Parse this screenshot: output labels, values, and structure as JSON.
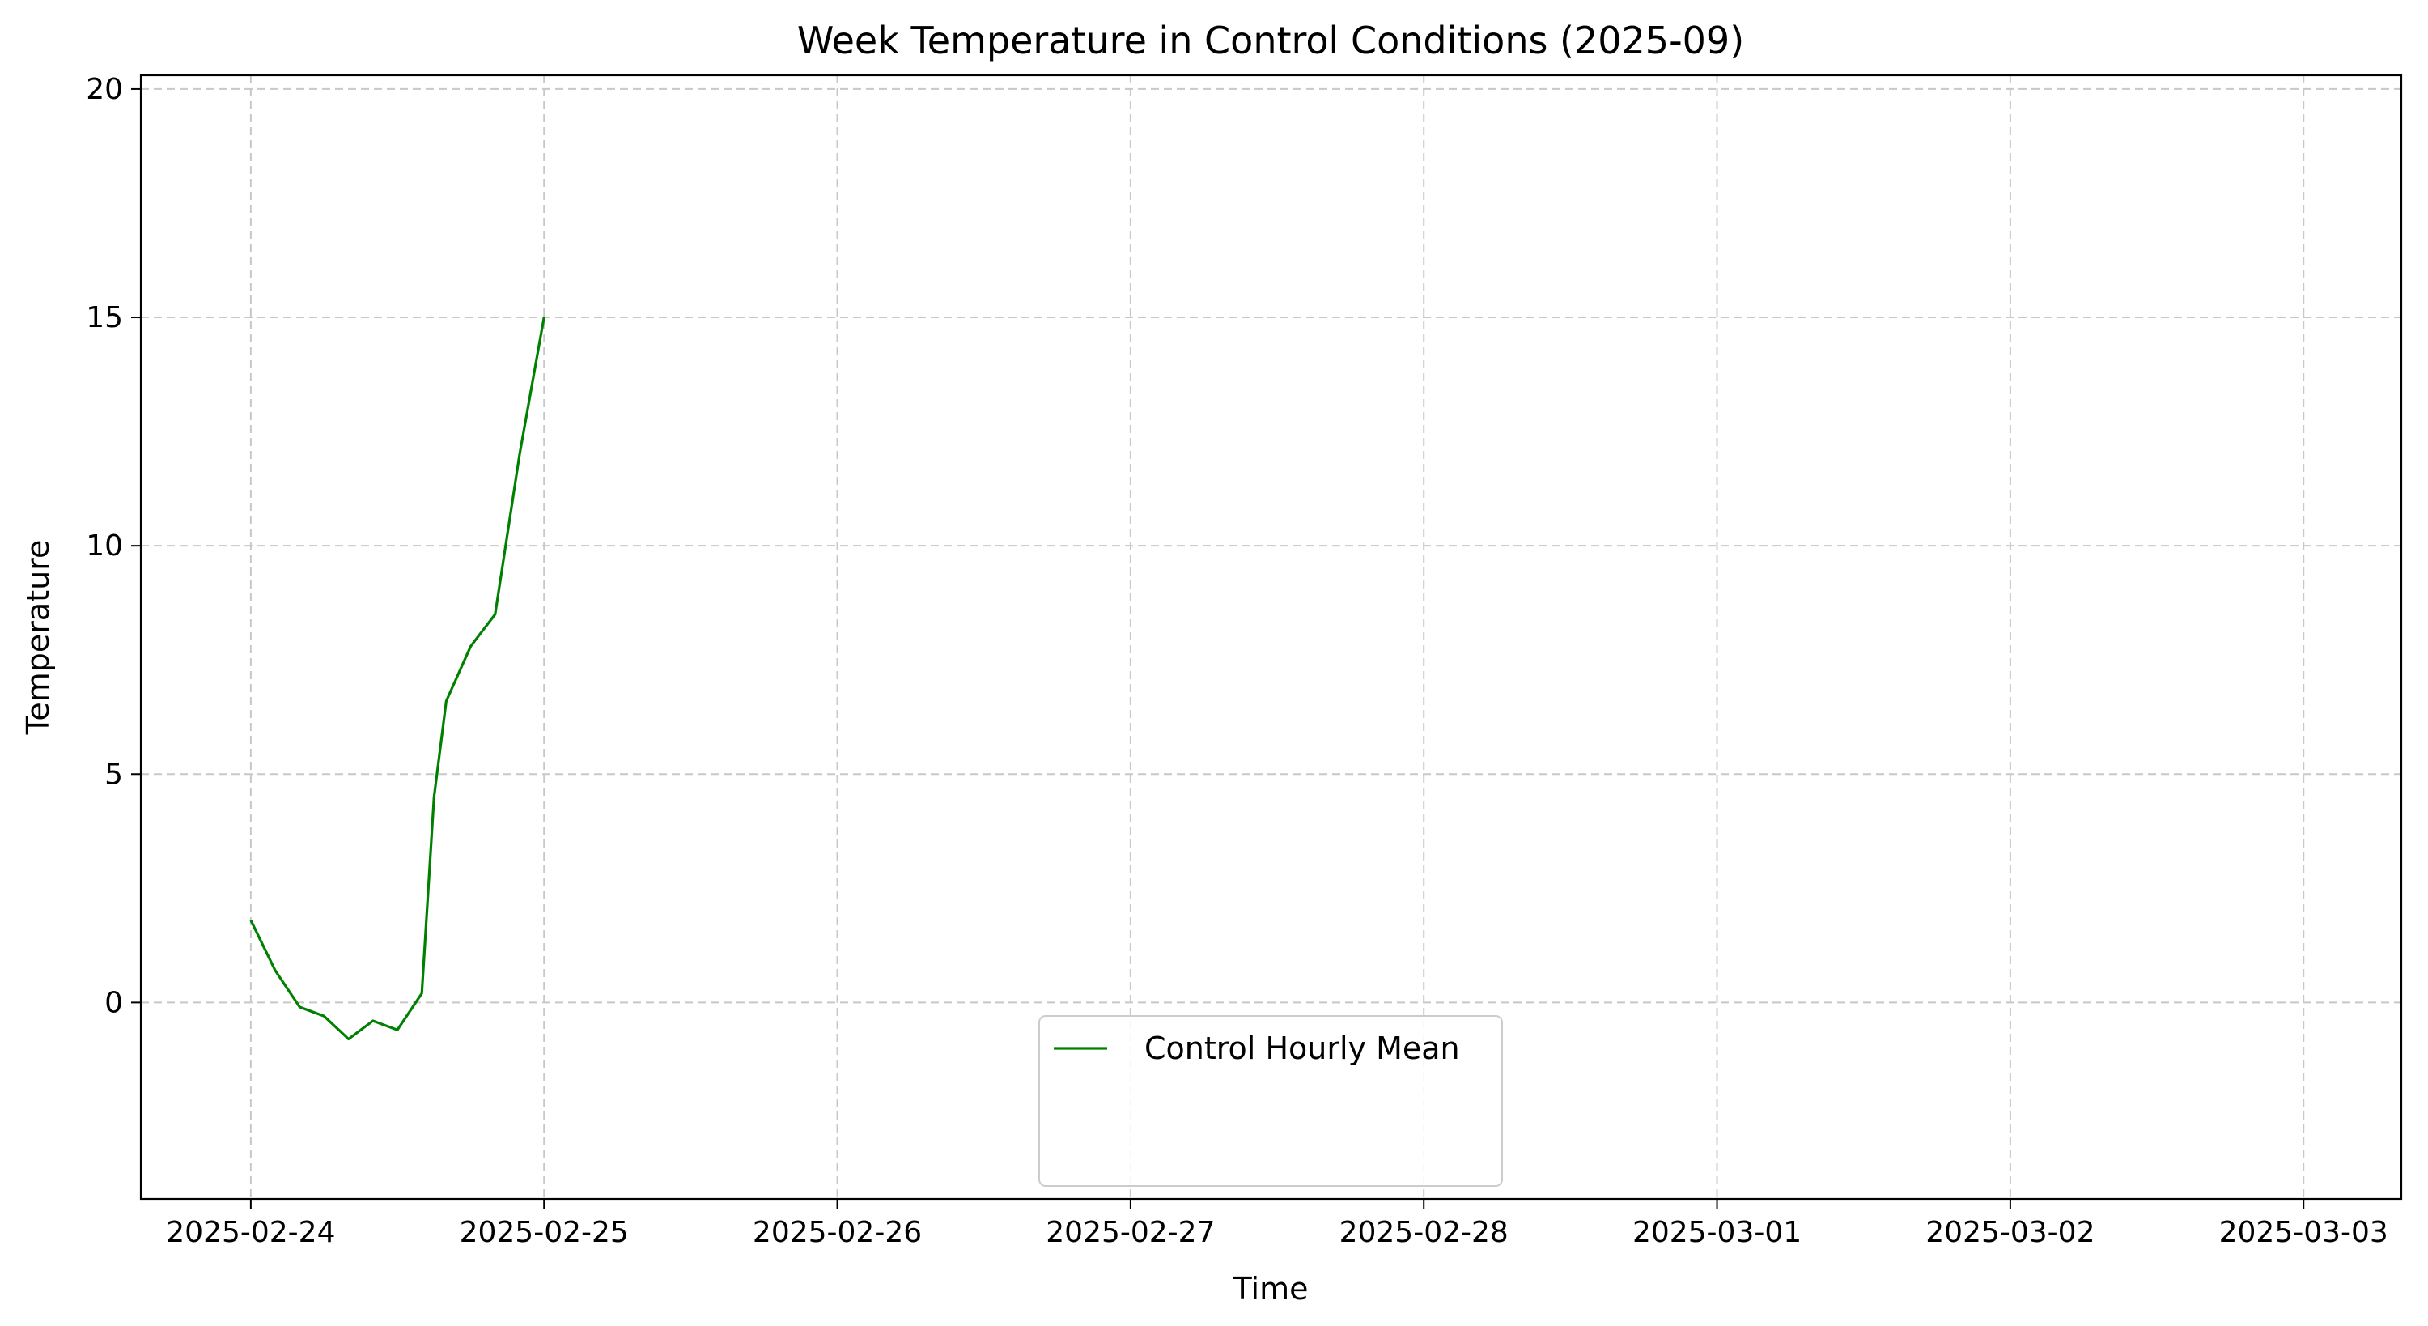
{
  "chart_data": {
    "type": "line",
    "title": "Week Temperature in Control Conditions (2025-09)",
    "xlabel": "Time",
    "ylabel": "Temperature",
    "ylim": [
      -4.3,
      20.3
    ],
    "xlim": [
      "2025-02-23T15:00",
      "2025-03-03T08:00"
    ],
    "x_ticks": [
      "2025-02-24",
      "2025-02-25",
      "2025-02-26",
      "2025-02-27",
      "2025-02-28",
      "2025-03-01",
      "2025-03-02",
      "2025-03-03"
    ],
    "y_ticks": [
      0,
      5,
      10,
      15,
      20
    ],
    "grid": true,
    "legend_position": "bottom-center",
    "series": [
      {
        "name": "Control Hourly Mean",
        "color": "#008000",
        "dash": "solid",
        "points": [
          [
            "2025-02-24T00:00",
            1.8
          ],
          [
            "2025-02-24T02:00",
            0.7
          ],
          [
            "2025-02-24T04:00",
            -0.1
          ],
          [
            "2025-02-24T06:00",
            -0.3
          ],
          [
            "2025-02-24T08:00",
            -0.8
          ],
          [
            "2025-02-24T10:00",
            -0.4
          ],
          [
            "2025-02-24T12:00",
            -0.6
          ],
          [
            "2025-02-24T14:00",
            0.2
          ],
          [
            "2025-02-24T15:00",
            4.5
          ],
          [
            "2025-02-24T16:00",
            6.6
          ],
          [
            "2025-02-24T17:00",
            7.2
          ],
          [
            "2025-02-24T18:00",
            7.8
          ],
          [
            "2025-02-24T20:00",
            8.5
          ],
          [
            "2025-02-24T22:00",
            12.0
          ],
          [
            "2025-02-25T00:00",
            15.0
          ],
          [
            "2025-02-24T00:00",
            null
          ],
          [
            "2025-02-25T00:00",
            16.8
          ]
        ]
      }
    ]
  }
}
